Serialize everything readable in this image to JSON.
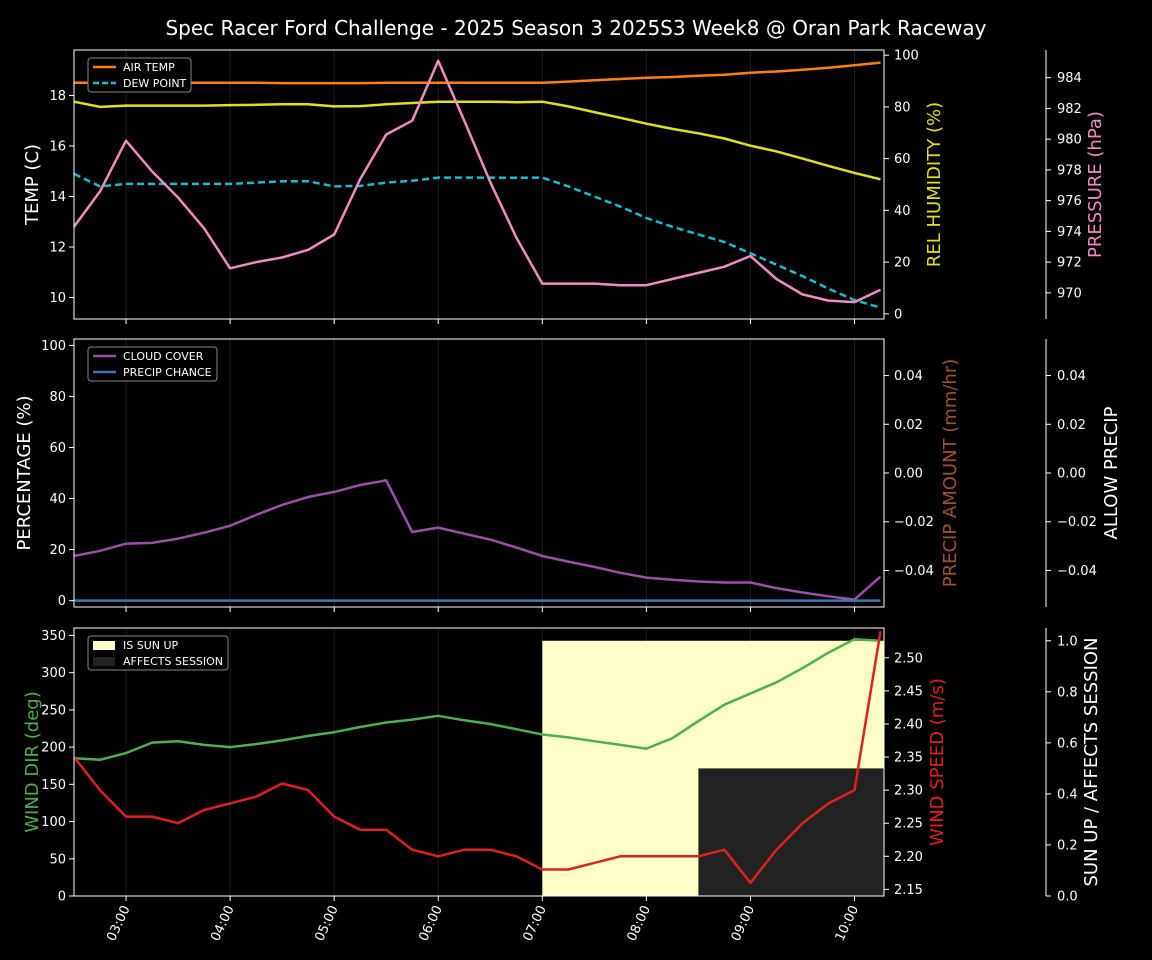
{
  "title": "Spec Racer Ford Challenge - 2025 Season 3 2025S3 Week8 @ Oran Park Raceway",
  "time_ticks": [
    "03:00",
    "04:00",
    "05:00",
    "06:00",
    "07:00",
    "08:00",
    "09:00",
    "10:00"
  ],
  "colors": {
    "background": "#000000",
    "air_temp": "#ff7f0e",
    "dew_point": "#17becf",
    "humidity": "#e0e020",
    "pressure": "#f28bbf",
    "cloud_cover": "#9b4fa6",
    "precip_chance": "#3f74b5",
    "precip_amount_label": "#a0522d",
    "wind_dir": "#4caf50",
    "wind_speed": "#e02020",
    "sun_up": "#ffffc8",
    "affects_session": "#222222"
  },
  "chart_data": [
    {
      "type": "line",
      "panel": "temperature",
      "x": [
        "02:30",
        "02:45",
        "03:00",
        "03:15",
        "03:30",
        "03:45",
        "04:00",
        "04:15",
        "04:30",
        "04:45",
        "05:00",
        "05:15",
        "05:30",
        "05:45",
        "06:00",
        "06:15",
        "06:30",
        "06:45",
        "07:00",
        "07:15",
        "07:30",
        "07:45",
        "08:00",
        "08:15",
        "08:30",
        "08:45",
        "09:00",
        "09:15",
        "09:30",
        "09:45",
        "10:00",
        "10:15"
      ],
      "series": [
        {
          "name": "AIR TEMP",
          "axis": "TEMP (C)",
          "style": "solid",
          "values": [
            18.5,
            18.5,
            18.5,
            18.5,
            18.5,
            18.5,
            18.5,
            18.5,
            18.49,
            18.49,
            18.49,
            18.49,
            18.5,
            18.5,
            18.5,
            18.5,
            18.5,
            18.5,
            18.5,
            18.55,
            18.6,
            18.65,
            18.7,
            18.73,
            18.78,
            18.82,
            18.9,
            18.95,
            19.02,
            19.1,
            19.2,
            19.3
          ]
        },
        {
          "name": "DEW POINT",
          "axis": "TEMP (C)",
          "style": "dashed",
          "values": [
            14.9,
            14.4,
            14.5,
            14.5,
            14.5,
            14.5,
            14.5,
            14.55,
            14.6,
            14.6,
            14.4,
            14.42,
            14.55,
            14.62,
            14.75,
            14.75,
            14.75,
            14.74,
            14.75,
            14.4,
            14.0,
            13.6,
            13.15,
            12.8,
            12.5,
            12.2,
            11.75,
            11.3,
            10.85,
            10.35,
            9.9,
            9.6
          ]
        },
        {
          "name": "REL HUMIDITY",
          "axis": "REL HUMIDITY (%)",
          "values": [
            82,
            80,
            80.5,
            80.5,
            80.5,
            80.5,
            80.7,
            80.8,
            81,
            81,
            80.2,
            80.3,
            81,
            81.5,
            82,
            82,
            82,
            81.8,
            82,
            80.2,
            78,
            75.8,
            73.5,
            71.5,
            69.8,
            67.8,
            65,
            62.8,
            60,
            57.2,
            54.5,
            52
          ]
        },
        {
          "name": "PRESSURE",
          "axis": "PRESSURE (hPa)",
          "values": [
            974.3,
            976.6,
            979.9,
            977.9,
            976.2,
            974.2,
            971.6,
            972.0,
            972.3,
            972.8,
            973.8,
            977.4,
            980.3,
            981.2,
            985.1,
            981.2,
            977.2,
            973.6,
            970.6,
            970.6,
            970.6,
            970.5,
            970.5,
            970.9,
            971.3,
            971.7,
            972.4,
            970.9,
            969.9,
            969.5,
            969.4,
            970.2
          ]
        }
      ],
      "ylabel_left": "TEMP (C)",
      "ylim_left": [
        9.15,
        19.8
      ],
      "yticks_left": [
        "10",
        "12",
        "14",
        "16",
        "18"
      ],
      "ylabel_right1": "REL HUMIDITY (%)",
      "ylim_right1": [
        -2,
        102
      ],
      "yticks_right1": [
        "0",
        "20",
        "40",
        "60",
        "80",
        "100"
      ],
      "ylabel_right2": "PRESSURE (hPa)",
      "ylim_right2": [
        968.3,
        985.8
      ],
      "yticks_right2": [
        "970",
        "972",
        "974",
        "976",
        "978",
        "980",
        "982",
        "984"
      ],
      "legend": [
        "AIR TEMP",
        "DEW POINT"
      ],
      "legend_placement": "upper-left"
    },
    {
      "type": "line",
      "panel": "clouds",
      "x": [
        "02:30",
        "02:45",
        "03:00",
        "03:15",
        "03:30",
        "03:45",
        "04:00",
        "04:15",
        "04:30",
        "04:45",
        "05:00",
        "05:15",
        "05:30",
        "05:45",
        "06:00",
        "06:15",
        "06:30",
        "06:45",
        "07:00",
        "07:15",
        "07:30",
        "07:45",
        "08:00",
        "08:15",
        "08:30",
        "08:45",
        "09:00",
        "09:15",
        "09:30",
        "09:45",
        "10:00",
        "10:15"
      ],
      "series": [
        {
          "name": "CLOUD COVER",
          "values": [
            17.5,
            19.5,
            22.3,
            22.6,
            24.3,
            26.6,
            29.3,
            33.6,
            37.5,
            40.6,
            42.6,
            45.3,
            47.1,
            26.9,
            28.6,
            26.2,
            23.9,
            20.8,
            17.5,
            15.3,
            13.2,
            10.9,
            9.0,
            8.2,
            7.5,
            7.1,
            7.1,
            4.9,
            3.2,
            1.7,
            0.4,
            9.4
          ]
        },
        {
          "name": "PRECIP CHANCE",
          "values": [
            0,
            0,
            0,
            0,
            0,
            0,
            0,
            0,
            0,
            0,
            0,
            0,
            0,
            0,
            0,
            0,
            0,
            0,
            0,
            0,
            0,
            0,
            0,
            0,
            0,
            0,
            0,
            0,
            0,
            0,
            0,
            0
          ]
        }
      ],
      "ylabel_left": "PERCENTAGE (%)",
      "ylim_left": [
        -2.5,
        102.5
      ],
      "yticks_left": [
        "0",
        "20",
        "40",
        "60",
        "80",
        "100"
      ],
      "ylabel_right1": "PRECIP AMOUNT (mm/hr)",
      "ylim_right1": [
        -0.055,
        0.055
      ],
      "yticks_right1": [
        "−0.04",
        "−0.02",
        "0.00",
        "0.02",
        "0.04"
      ],
      "ylabel_right2": "ALLOW PRECIP",
      "ylim_right2": [
        -0.055,
        0.055
      ],
      "yticks_right2": [
        "−0.04",
        "−0.02",
        "0.00",
        "0.02",
        "0.04"
      ],
      "legend": [
        "CLOUD COVER",
        "PRECIP CHANCE"
      ],
      "legend_placement": "upper-left"
    },
    {
      "type": "line",
      "panel": "wind",
      "x": [
        "02:30",
        "02:45",
        "03:00",
        "03:15",
        "03:30",
        "03:45",
        "04:00",
        "04:15",
        "04:30",
        "04:45",
        "05:00",
        "05:15",
        "05:30",
        "05:45",
        "06:00",
        "06:15",
        "06:30",
        "06:45",
        "07:00",
        "07:15",
        "07:30",
        "07:45",
        "08:00",
        "08:15",
        "08:30",
        "08:45",
        "09:00",
        "09:15",
        "09:30",
        "09:45",
        "10:00",
        "10:15"
      ],
      "series": [
        {
          "name": "WIND DIR",
          "axis": "WIND DIR (deg)",
          "values": [
            185,
            183,
            192,
            206,
            208,
            203,
            200,
            204,
            209,
            215,
            220,
            227,
            233,
            237,
            242,
            236,
            231,
            224,
            217,
            213,
            208,
            203,
            198,
            212,
            235,
            257,
            272,
            287,
            306,
            327,
            345,
            343
          ]
        },
        {
          "name": "WIND SPEED",
          "axis": "WIND SPEED (m/s)",
          "values": [
            2.35,
            2.3,
            2.26,
            2.26,
            2.25,
            2.27,
            2.28,
            2.29,
            2.31,
            2.3,
            2.26,
            2.24,
            2.24,
            2.21,
            2.2,
            2.21,
            2.21,
            2.2,
            2.18,
            2.18,
            2.19,
            2.2,
            2.2,
            2.2,
            2.2,
            2.21,
            2.16,
            2.21,
            2.25,
            2.28,
            2.3,
            2.54
          ]
        }
      ],
      "shaded_regions": [
        {
          "name": "IS SUN UP",
          "from": "07:00",
          "to": "10:15",
          "value": 1.0
        },
        {
          "name": "AFFECTS SESSION",
          "from": "08:30",
          "to": "10:15",
          "value": 0.5
        }
      ],
      "ylabel_left": "WIND DIR (deg)",
      "ylim_left": [
        0,
        360
      ],
      "yticks_left": [
        "0",
        "50",
        "100",
        "150",
        "200",
        "250",
        "300",
        "350"
      ],
      "ylabel_right1": "WIND SPEED (m/s)",
      "ylim_right1": [
        2.14,
        2.545
      ],
      "yticks_right1": [
        "2.15",
        "2.20",
        "2.25",
        "2.30",
        "2.35",
        "2.40",
        "2.45",
        "2.50"
      ],
      "ylabel_right2": "SUN UP / AFFECTS SESSION",
      "ylim_right2": [
        0,
        1.05
      ],
      "yticks_right2": [
        "0.0",
        "0.2",
        "0.4",
        "0.6",
        "0.8",
        "1.0"
      ],
      "legend": [
        "IS SUN UP",
        "AFFECTS SESSION"
      ],
      "legend_placement": "upper-left"
    }
  ]
}
